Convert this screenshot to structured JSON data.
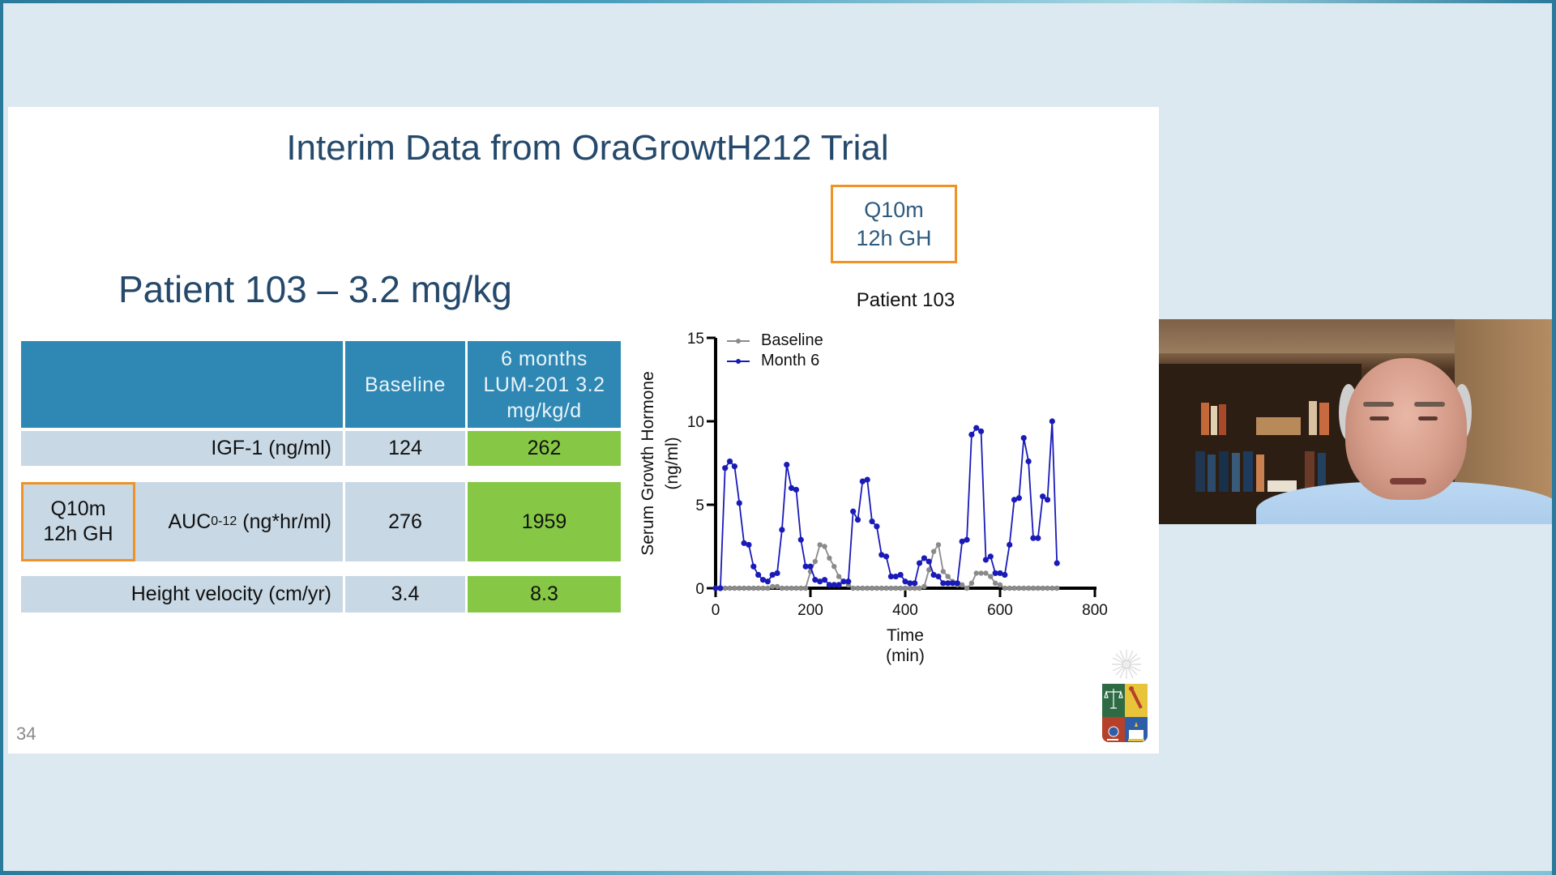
{
  "slide": {
    "title": "Interim Data from OraGrowtH212 Trial",
    "subtitle": "Patient 103 – 3.2 mg/kg",
    "slide_number": "34",
    "callout_top": {
      "line1": "Q10m",
      "line2": "12h GH"
    },
    "accent_colors": {
      "header_blue": "#2e88b3",
      "highlight_green": "#86c846",
      "callout_orange": "#ef9326",
      "title_navy": "#25496b"
    }
  },
  "table": {
    "headers": {
      "col1": "",
      "col2": "Baseline",
      "col3": "6 months LUM-201 3.2 mg/kg/d"
    },
    "rows": [
      {
        "label": "IGF-1 (ng/ml)",
        "baseline": "124",
        "month6": "262"
      },
      {
        "label_main": "AUC",
        "label_sub": "0-12",
        "label_unit": " (ng*hr/ml)",
        "baseline": "276",
        "month6": "1959",
        "callout": {
          "line1": "Q10m",
          "line2": "12h GH"
        }
      },
      {
        "label": "Height velocity (cm/yr)",
        "baseline": "3.4",
        "month6": "8.3"
      }
    ]
  },
  "chart_data": {
    "type": "line",
    "title": "Patient 103",
    "xlabel": "Time (min)",
    "xlabel_line1": "Time",
    "xlabel_line2": "(min)",
    "ylabel": "Serum Growth Hormone (ng/ml)",
    "ylabel_line1": "Serum Growth Hormone",
    "ylabel_line2": "(ng/ml)",
    "xlim": [
      0,
      800
    ],
    "ylim": [
      0,
      15
    ],
    "xticks": [
      0,
      200,
      400,
      600,
      800
    ],
    "yticks": [
      0,
      5,
      10,
      15
    ],
    "grid": false,
    "legend_position": "top-left",
    "x": [
      0,
      10,
      20,
      30,
      40,
      50,
      60,
      70,
      80,
      90,
      100,
      110,
      120,
      130,
      140,
      150,
      160,
      170,
      180,
      190,
      200,
      210,
      220,
      230,
      240,
      250,
      260,
      270,
      280,
      290,
      300,
      310,
      320,
      330,
      340,
      350,
      360,
      370,
      380,
      390,
      400,
      410,
      420,
      430,
      440,
      450,
      460,
      470,
      480,
      490,
      500,
      510,
      520,
      530,
      540,
      550,
      560,
      570,
      580,
      590,
      600,
      610,
      620,
      630,
      640,
      650,
      660,
      670,
      680,
      690,
      700,
      710,
      720
    ],
    "series": [
      {
        "name": "Baseline",
        "color": "#8a8a8a",
        "values": [
          0,
          0,
          0,
          0,
          0,
          0,
          0,
          0,
          0,
          0,
          0,
          0,
          0.1,
          0.1,
          0,
          0,
          0,
          0,
          0,
          0,
          1.0,
          1.6,
          2.6,
          2.5,
          1.8,
          1.3,
          0.7,
          0.4,
          0.2,
          0,
          0,
          0,
          0,
          0,
          0,
          0,
          0,
          0,
          0,
          0,
          0,
          0,
          0,
          0,
          0.1,
          1.1,
          2.2,
          2.6,
          1.0,
          0.7,
          0.4,
          0.2,
          0.2,
          0,
          0.3,
          0.9,
          0.9,
          0.9,
          0.7,
          0.3,
          0.2,
          0,
          0,
          0,
          0,
          0,
          0,
          0,
          0,
          0,
          0,
          0,
          0
        ]
      },
      {
        "name": "Month 6",
        "color": "#1a1ab8",
        "values": [
          0,
          0,
          7.2,
          7.6,
          7.3,
          5.1,
          2.7,
          2.6,
          1.3,
          0.8,
          0.5,
          0.4,
          0.8,
          0.9,
          3.5,
          7.4,
          6.0,
          5.9,
          2.9,
          1.3,
          1.3,
          0.5,
          0.4,
          0.5,
          0.2,
          0.2,
          0.2,
          0.4,
          0.4,
          4.6,
          4.1,
          6.4,
          6.5,
          4.0,
          3.7,
          2.0,
          1.9,
          0.7,
          0.7,
          0.8,
          0.4,
          0.3,
          0.3,
          1.5,
          1.8,
          1.6,
          0.8,
          0.7,
          0.3,
          0.3,
          0.3,
          0.3,
          2.8,
          2.9,
          9.2,
          9.6,
          9.4,
          1.7,
          1.9,
          0.9,
          0.9,
          0.8,
          2.6,
          5.3,
          5.4,
          9.0,
          7.6,
          3.0,
          3.0,
          5.5,
          5.3,
          10.0,
          1.5
        ]
      }
    ]
  },
  "logo": {
    "name": "university-crest",
    "quadrant_colors": [
      "#2e6b45",
      "#e8c43a",
      "#b5412b",
      "#2f5ea8"
    ]
  },
  "webcam": {
    "description": "presenter video feed"
  }
}
